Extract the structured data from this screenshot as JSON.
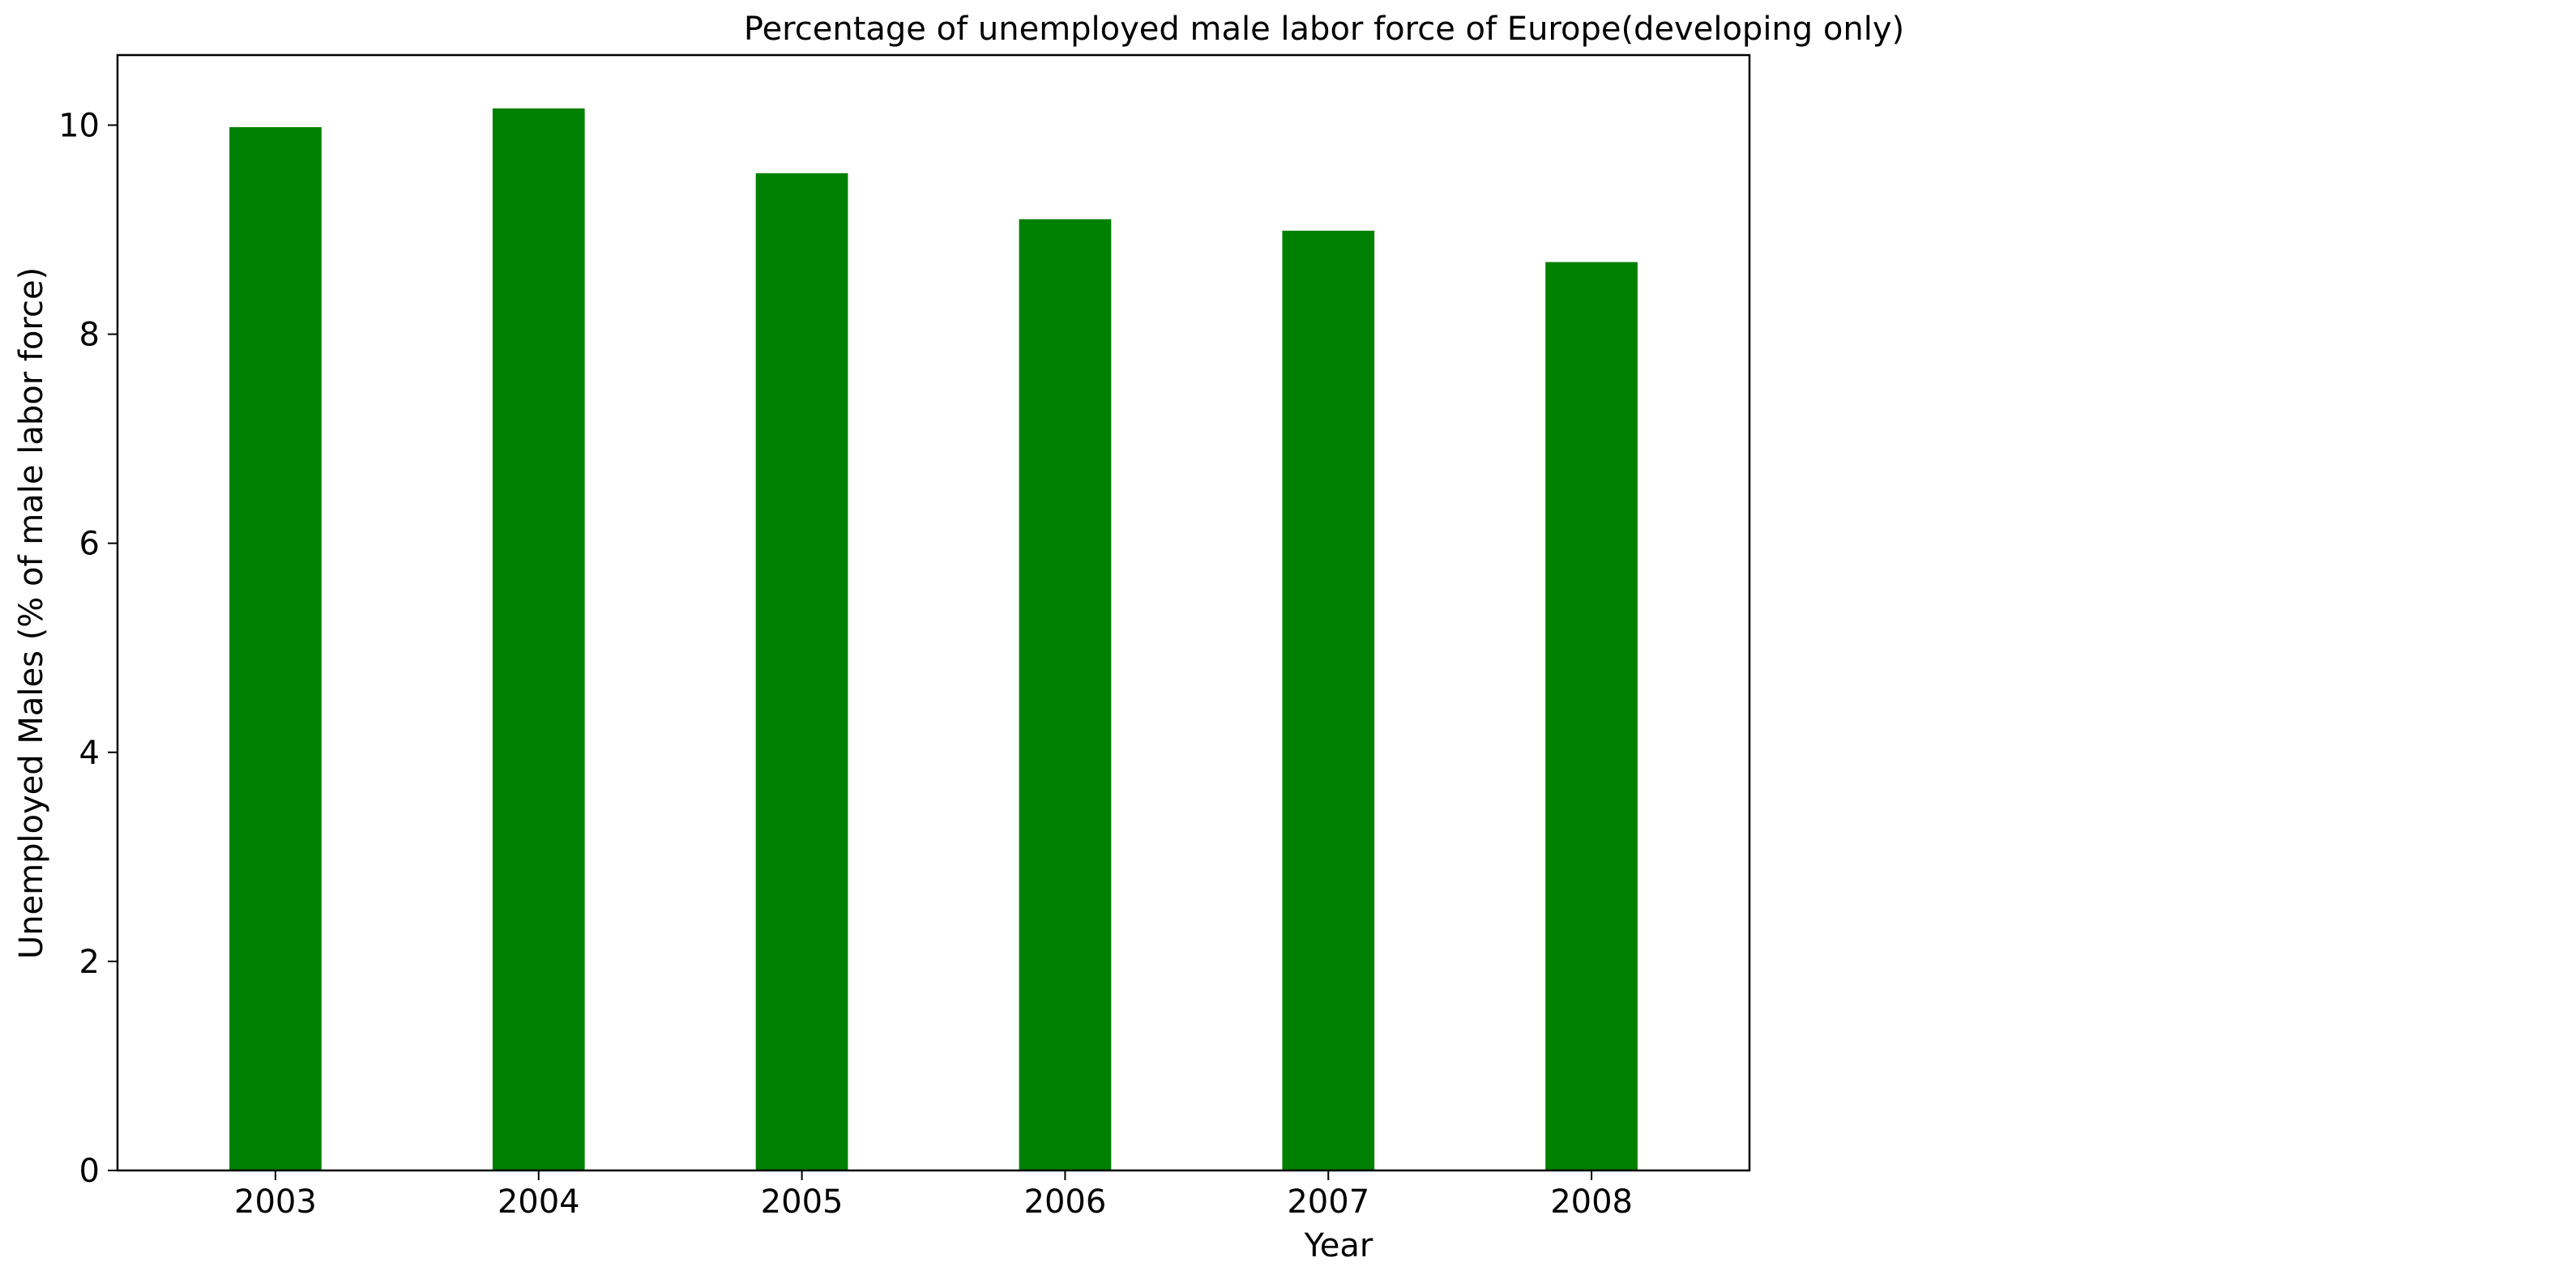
{
  "chart_data": {
    "type": "bar",
    "title": "Percentage of unemployed male labor force of Europe(developing only)",
    "xlabel": "Year",
    "ylabel": "Unemployed Males (% of male labor force)",
    "categories": [
      "2003",
      "2004",
      "2005",
      "2006",
      "2007",
      "2008"
    ],
    "values": [
      9.98,
      10.16,
      9.54,
      9.1,
      8.99,
      8.69
    ],
    "ylim": [
      0,
      10.67
    ],
    "yticks": [
      0,
      2,
      4,
      6,
      8,
      10
    ],
    "bar_color": "#008000",
    "grid": false,
    "legend": "none"
  }
}
